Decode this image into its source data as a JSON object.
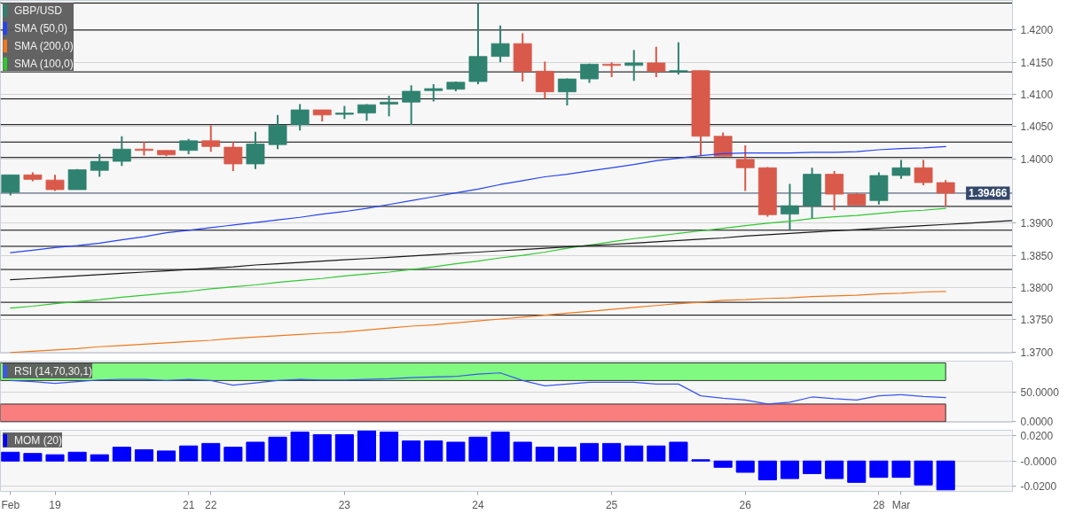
{
  "chart_data": [
    {
      "type": "candlestick",
      "categories": [
        null,
        null,
        null,
        null,
        null,
        null,
        null,
        null,
        null,
        null,
        null,
        null,
        null,
        null,
        null,
        null,
        null,
        null,
        null,
        null,
        null,
        null,
        null,
        null,
        null,
        null,
        null,
        null,
        null,
        null,
        null,
        null,
        null,
        null,
        null,
        null,
        null,
        null,
        null,
        null,
        null,
        null,
        null,
        null,
        null,
        null
      ],
      "series": [
        {
          "type": "candlestick",
          "name": "GBP/USD",
          "color": "#2f8270",
          "colors": [
            "#2f8270",
            "#d9594a",
            "#d9594a",
            "#2f8270",
            "#2f8270",
            "#2f8270",
            "#d9594a",
            "#d9594a",
            "#2f8270",
            "#d9594a",
            "#d9594a",
            "#2f8270",
            "#2f8270",
            "#2f8270",
            "#d9594a",
            "#2f8270",
            "#2f8270",
            "#2f8270",
            "#2f8270",
            "#2f8270",
            "#2f8270",
            "#2f8270",
            "#2f8270",
            "#d9594a",
            "#d9594a",
            "#2f8270",
            "#2f8270",
            "#d9594a",
            "#2f8270",
            "#d9594a",
            "#2f8270",
            "#d9594a",
            "#d9594a",
            "#d9594a",
            "#d9594a",
            "#2f8270",
            "#2f8270",
            "#d9594a",
            "#d9594a",
            "#2f8270",
            "#2f8270",
            "#d9594a",
            "#d9594a",
            null,
            null,
            null
          ],
          "ohlc": [
            [
              1.3948,
              1.3975,
              1.3943,
              1.3975
            ],
            [
              1.3975,
              1.3979,
              1.3965,
              1.3968
            ],
            [
              1.3967,
              1.3975,
              1.395,
              1.3952
            ],
            [
              1.3952,
              1.3984,
              1.3952,
              1.3983
            ],
            [
              1.3982,
              1.4007,
              1.3972,
              1.3996
            ],
            [
              1.3996,
              1.4035,
              1.3989,
              1.4015
            ],
            [
              1.4015,
              1.4026,
              1.4005,
              1.4013
            ],
            [
              1.4013,
              1.4013,
              1.4004,
              1.4006
            ],
            [
              1.4013,
              1.4031,
              1.4007,
              1.4028
            ],
            [
              1.4028,
              1.4052,
              1.4011,
              1.4019
            ],
            [
              1.4018,
              1.4026,
              1.3981,
              1.3992
            ],
            [
              1.3992,
              1.4042,
              1.3984,
              1.4023
            ],
            [
              1.4022,
              1.4068,
              1.4015,
              1.4052
            ],
            [
              1.4053,
              1.4085,
              1.4044,
              1.4076
            ],
            [
              1.4076,
              1.4076,
              1.4058,
              1.4068
            ],
            [
              1.4069,
              1.4082,
              1.4062,
              1.4071
            ],
            [
              1.4071,
              1.4085,
              1.4059,
              1.4084
            ],
            [
              1.4085,
              1.4098,
              1.4066,
              1.4088
            ],
            [
              1.4088,
              1.4114,
              1.4053,
              1.4105
            ],
            [
              1.4106,
              1.4116,
              1.4089,
              1.4109
            ],
            [
              1.4108,
              1.412,
              1.4105,
              1.4119
            ],
            [
              1.412,
              1.4242,
              1.4116,
              1.4159
            ],
            [
              1.4159,
              1.4207,
              1.415,
              1.4179
            ],
            [
              1.4179,
              1.4195,
              1.412,
              1.4136
            ],
            [
              1.4136,
              1.4151,
              1.4093,
              1.4104
            ],
            [
              1.4104,
              1.4125,
              1.4083,
              1.4124
            ],
            [
              1.4124,
              1.4148,
              1.4118,
              1.4147
            ],
            [
              1.4147,
              1.415,
              1.4127,
              1.4145
            ],
            [
              1.4145,
              1.4169,
              1.4121,
              1.4149
            ],
            [
              1.4149,
              1.4174,
              1.4127,
              1.4136
            ],
            [
              1.4135,
              1.4181,
              1.4131,
              1.4137
            ],
            [
              1.4137,
              1.4137,
              1.4005,
              1.4035
            ],
            [
              1.4035,
              1.4041,
              1.4004,
              1.4004
            ],
            [
              1.3999,
              1.4021,
              1.395,
              1.3986
            ],
            [
              1.3986,
              1.3987,
              1.391,
              1.3913
            ],
            [
              1.3914,
              1.3961,
              1.389,
              1.3927
            ],
            [
              1.3927,
              1.3986,
              1.3907,
              1.3976
            ],
            [
              1.3976,
              1.3981,
              1.392,
              1.3945
            ],
            [
              1.3945,
              1.3947,
              1.3928,
              1.3928
            ],
            [
              1.3935,
              1.3979,
              1.3929,
              1.3974
            ],
            [
              1.3974,
              1.3998,
              1.3969,
              1.3986
            ],
            [
              1.3986,
              1.3998,
              1.3959,
              1.3963
            ],
            [
              1.3963,
              1.3967,
              1.3926,
              1.39466
            ],
            null,
            null,
            null
          ]
        },
        {
          "type": "line",
          "name": "SMA (50,0)",
          "color": "#2643f2",
          "values": [
            1.3854,
            1.3858,
            1.3862,
            1.3865,
            1.3869,
            1.3874,
            1.3879,
            1.3885,
            1.3889,
            1.3893,
            1.3897,
            1.3901,
            1.3905,
            1.3909,
            1.3914,
            1.3918,
            1.3923,
            1.3929,
            1.3935,
            1.3941,
            1.3947,
            1.3953,
            1.396,
            1.3966,
            1.3972,
            1.3976,
            1.3981,
            1.3986,
            1.3991,
            1.3997,
            1.4001,
            1.4005,
            1.4008,
            1.4009,
            1.4009,
            1.4009,
            1.401,
            1.401,
            1.4011,
            1.4014,
            1.4016,
            1.4017,
            1.4019,
            null,
            null,
            null
          ]
        },
        {
          "type": "line",
          "name": "SMA (200,0)",
          "color": "#f0781e",
          "values": [
            1.3699,
            1.3701,
            1.3703,
            1.3705,
            1.3708,
            1.371,
            1.3712,
            1.3714,
            1.3716,
            1.3718,
            1.3721,
            1.3723,
            1.3725,
            1.3727,
            1.3729,
            1.3731,
            1.3734,
            1.3737,
            1.374,
            1.3742,
            1.3745,
            1.3748,
            1.3751,
            1.3754,
            1.3757,
            1.376,
            1.3763,
            1.3766,
            1.3769,
            1.3772,
            1.3775,
            1.3777,
            1.378,
            1.3781,
            1.3783,
            1.3784,
            1.3786,
            1.3787,
            1.3788,
            1.379,
            1.3791,
            1.3793,
            1.3794,
            null,
            null,
            null
          ]
        },
        {
          "type": "line",
          "name": "SMA (100,0)",
          "color": "#2fc82f",
          "values": [
            1.3768,
            1.3771,
            1.3775,
            1.3778,
            1.3781,
            1.3785,
            1.3788,
            1.3791,
            1.3794,
            1.3798,
            1.3801,
            1.3804,
            1.3808,
            1.3811,
            1.3814,
            1.3818,
            1.3821,
            1.3824,
            1.3828,
            1.3832,
            1.3837,
            1.3841,
            1.3846,
            1.385,
            1.3855,
            1.3861,
            1.3866,
            1.3871,
            1.3876,
            1.388,
            1.3884,
            1.3888,
            1.3892,
            1.3896,
            1.39,
            1.3903,
            1.3907,
            1.391,
            1.3912,
            1.3915,
            1.3918,
            1.392,
            1.3923,
            null,
            null,
            null
          ]
        },
        {
          "type": "line",
          "color": "#1a1a1a",
          "values": [
            1.3812,
            1.3814,
            1.3816,
            1.3818,
            1.382,
            1.3822,
            1.3824,
            1.3826,
            1.3828,
            1.383,
            1.3832,
            1.3835,
            1.3837,
            1.3839,
            1.3841,
            1.3843,
            1.3845,
            1.3847,
            1.3849,
            1.3851,
            1.3853,
            1.3855,
            1.3857,
            1.3859,
            1.3861,
            1.3863,
            1.3865,
            1.3867,
            1.3869,
            1.3871,
            1.3873,
            1.3875,
            1.3877,
            1.388,
            1.3882,
            1.3884,
            1.3886,
            1.3888,
            1.389,
            1.3892,
            1.3894,
            1.3896,
            1.3898,
            1.39,
            1.3902,
            1.3904
          ]
        }
      ],
      "ylim": [
        1.3698,
        1.4246
      ],
      "yticks": [
        {
          "value": 1.37,
          "label": "1.3700"
        },
        {
          "value": 1.375,
          "label": "1.3750"
        },
        {
          "value": 1.38,
          "label": "1.3800"
        },
        {
          "value": 1.385,
          "label": "1.3850"
        },
        {
          "value": 1.39,
          "label": "1.3900"
        },
        {
          "value": 1.4,
          "label": "1.4000"
        },
        {
          "value": 1.405,
          "label": "1.4050"
        },
        {
          "value": 1.41,
          "label": "1.4100"
        },
        {
          "value": 1.415,
          "label": "1.4150"
        },
        {
          "value": 1.42,
          "label": "1.4200"
        }
      ],
      "ref_lines": [
        {
          "axis": "y",
          "value": 1.4242,
          "color": "#000000"
        },
        {
          "axis": "y",
          "value": 1.42,
          "color": "#000000"
        },
        {
          "axis": "y",
          "value": 1.4135,
          "color": "#000000"
        },
        {
          "axis": "y",
          "value": 1.4093,
          "color": "#000000"
        },
        {
          "axis": "y",
          "value": 1.4053,
          "color": "#000000"
        },
        {
          "axis": "y",
          "value": 1.4026,
          "color": "#000000"
        },
        {
          "axis": "y",
          "value": 1.4002,
          "color": "#000000"
        },
        {
          "axis": "y",
          "value": 1.39466,
          "label": "1.39466",
          "color": "#34486a"
        },
        {
          "axis": "y",
          "value": 1.3926,
          "color": "#000000"
        },
        {
          "axis": "y",
          "value": 1.3889,
          "color": "#000000"
        },
        {
          "axis": "y",
          "value": 1.3864,
          "color": "#000000"
        },
        {
          "axis": "y",
          "value": 1.3828,
          "color": "#000000"
        },
        {
          "axis": "y",
          "value": 1.3777,
          "color": "#000000"
        },
        {
          "axis": "y",
          "value": 1.3757,
          "color": "#000000"
        }
      ],
      "grid": "y",
      "legend": "top left",
      "tick_labels": "y"
    },
    {
      "type": "line",
      "categories": [
        null,
        null,
        null,
        null,
        null,
        null,
        null,
        null,
        null,
        null,
        null,
        null,
        null,
        null,
        null,
        null,
        null,
        null,
        null,
        null,
        null,
        null,
        null,
        null,
        null,
        null,
        null,
        null,
        null,
        null,
        null,
        null,
        null,
        null,
        null,
        null,
        null,
        null,
        null,
        null,
        null,
        null,
        null,
        null,
        null,
        null
      ],
      "series": [
        {
          "name": "RSI (14,70,30,1)",
          "color": "#3a56f0",
          "values": [
            70,
            68,
            65,
            68,
            71,
            72,
            72,
            70,
            72,
            70,
            62,
            66,
            70,
            72,
            71,
            71,
            72,
            73,
            75,
            76,
            77,
            81,
            83,
            70,
            61,
            64,
            67,
            67,
            67,
            64,
            64,
            44,
            40,
            37,
            30,
            33,
            42,
            39,
            37,
            44,
            46,
            43,
            41,
            null,
            null,
            null
          ]
        }
      ],
      "ylim": [
        -1,
        103
      ],
      "yticks": [
        {
          "value": 0,
          "label": "0.0000"
        },
        {
          "value": 50,
          "label": "50.0000"
        }
      ],
      "bands": [
        {
          "axis": "y",
          "from": 70,
          "to": 100,
          "color": "#80fa80"
        },
        {
          "axis": "y",
          "from": 0,
          "to": 30,
          "color": "#fa7e7e"
        }
      ],
      "grid": "y",
      "legend": "top left",
      "tick_labels": "y"
    },
    {
      "type": "bar",
      "categories": [
        "Feb",
        null,
        "19",
        null,
        null,
        null,
        null,
        null,
        "21",
        "22",
        null,
        null,
        null,
        null,
        null,
        "23",
        null,
        null,
        null,
        null,
        null,
        "24",
        null,
        null,
        null,
        null,
        null,
        "25",
        null,
        null,
        null,
        null,
        null,
        "26",
        null,
        null,
        null,
        null,
        null,
        "28",
        "Mar",
        null,
        null,
        null,
        null,
        null
      ],
      "series": [
        {
          "name": "MOM (20)",
          "color": "#0000ff",
          "values": [
            0.007,
            0.006,
            0.005,
            0.007,
            0.005,
            0.011,
            0.009,
            0.008,
            0.012,
            0.014,
            0.011,
            0.015,
            0.019,
            0.023,
            0.021,
            0.021,
            0.024,
            0.023,
            0.016,
            0.016,
            0.015,
            0.019,
            0.023,
            0.015,
            0.011,
            0.011,
            0.014,
            0.014,
            0.012,
            0.012,
            0.015,
            0.001,
            -0.005,
            -0.009,
            -0.015,
            -0.014,
            -0.01,
            -0.014,
            -0.017,
            -0.013,
            -0.013,
            -0.019,
            -0.023,
            null,
            null,
            null
          ]
        }
      ],
      "ylim": [
        -0.0242,
        0.0245
      ],
      "yticks": [
        {
          "value": -0.02,
          "label": "-0.0200"
        },
        {
          "value": 0,
          "label": "-0.0000"
        },
        {
          "value": 0.02,
          "label": "0.0200"
        }
      ],
      "grid": "y",
      "legend": "top left"
    }
  ]
}
